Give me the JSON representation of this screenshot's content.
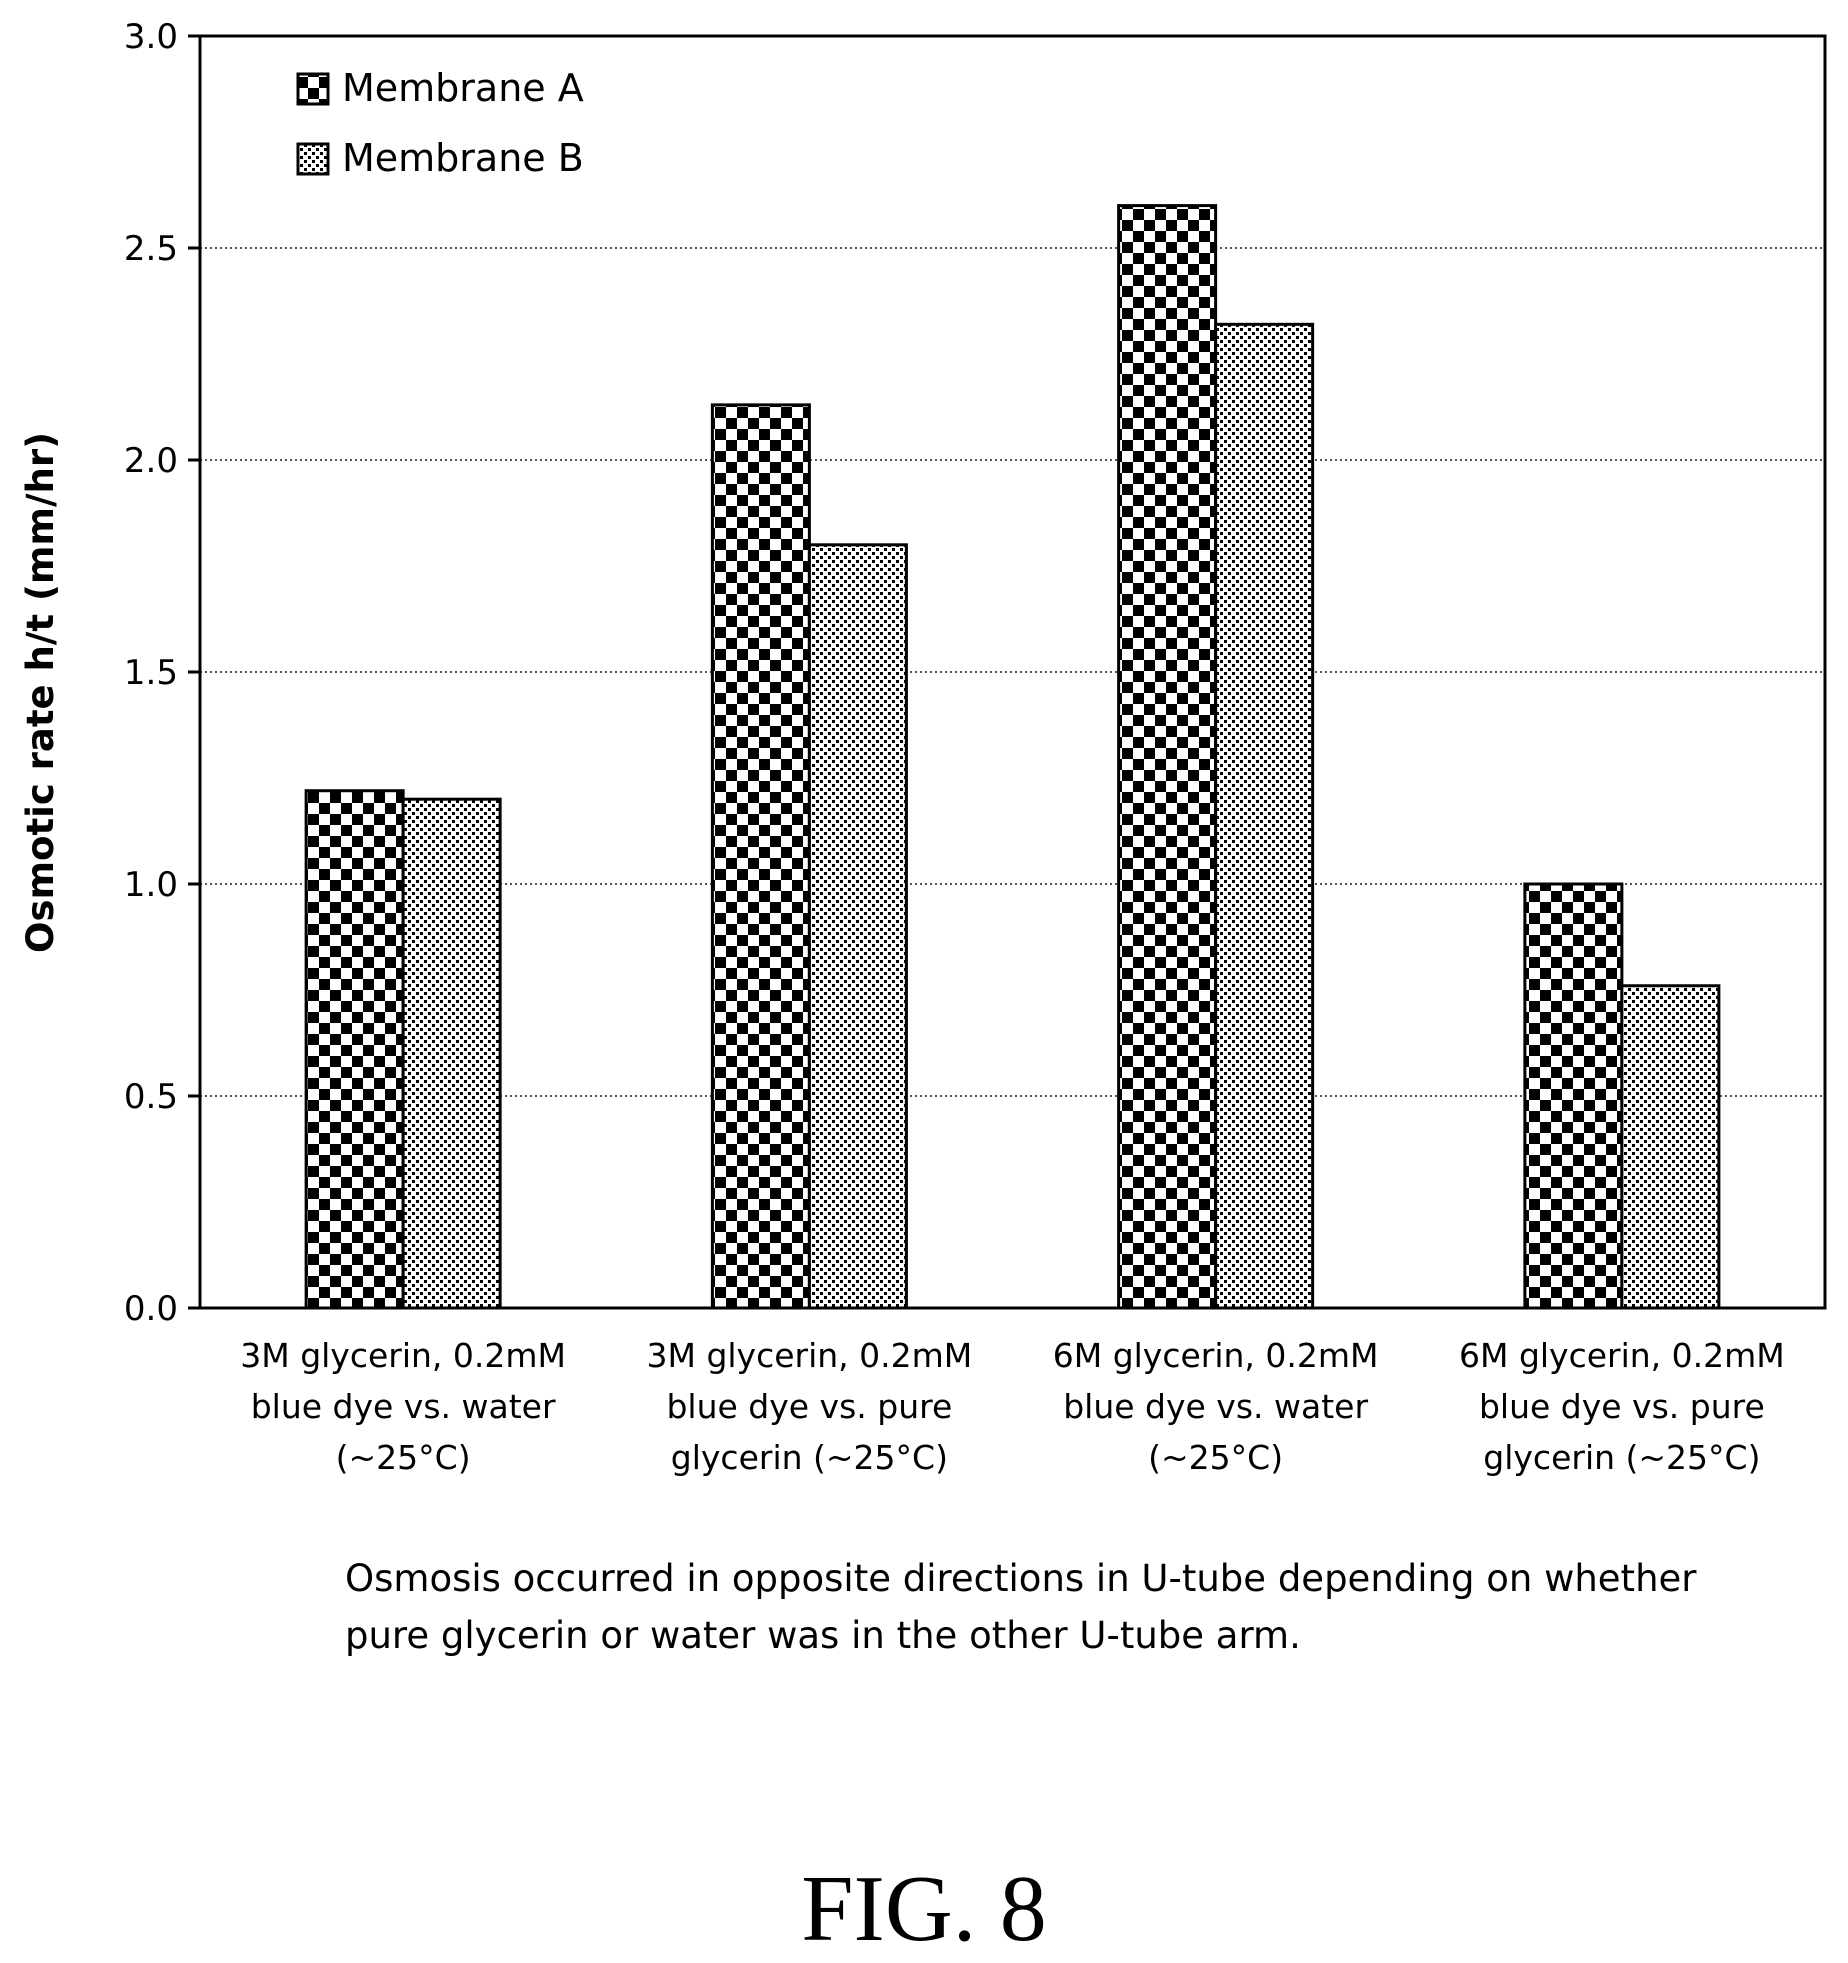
{
  "chart_data": {
    "type": "bar",
    "categories": [
      "3M glycerin, 0.2mM\nblue dye vs. water\n(~25°C)",
      "3M glycerin, 0.2mM\nblue dye vs. pure\nglycerin (~25°C)",
      "6M glycerin, 0.2mM\nblue dye vs. water\n(~25°C)",
      "6M glycerin, 0.2mM\nblue dye  vs. pure\nglycerin (~25°C)"
    ],
    "series": [
      {
        "name": "Membrane A",
        "pattern": "checkerboard",
        "values": [
          1.22,
          2.13,
          2.6,
          1.0
        ]
      },
      {
        "name": "Membrane B",
        "pattern": "fine-dots",
        "values": [
          1.2,
          1.8,
          2.32,
          0.76
        ]
      }
    ],
    "ylabel": "Osmotic rate h/t  (mm/hr)",
    "xlabel": "",
    "ylim": [
      0,
      3.0
    ],
    "yticks": [
      "0.0",
      "0.5",
      "1.0",
      "1.5",
      "2.0",
      "2.5",
      "3.0"
    ],
    "grid": "horizontal dotted",
    "legend_position": "top-left"
  },
  "note": "Osmosis occurred in opposite directions in U-tube depending on whether\npure glycerin or water was in the other U-tube arm.",
  "figure_label": "FIG. 8"
}
